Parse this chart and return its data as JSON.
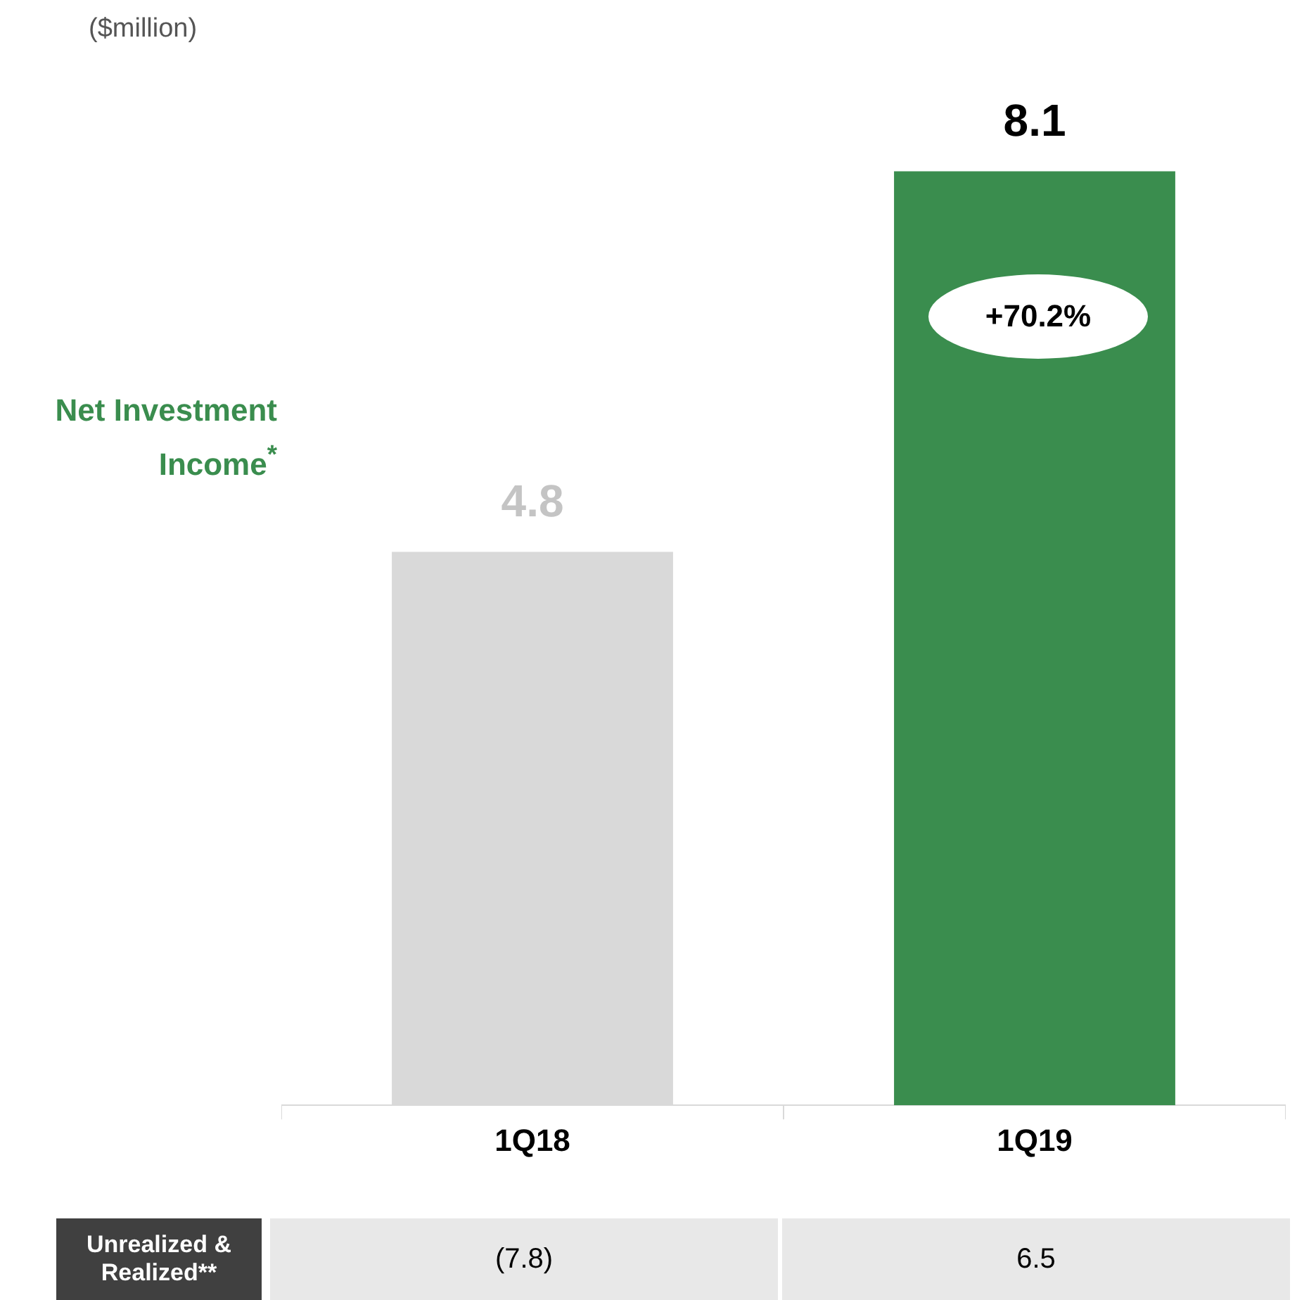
{
  "chart_data": {
    "type": "bar",
    "subtitle": "($million)",
    "ylabel": "Net Investment Income$^{*}$",
    "categories": [
      "1Q18",
      "1Q19"
    ],
    "values": [
      4.8,
      8.1
    ],
    "colors": [
      "#d9d9d9",
      "#3a8d4e"
    ],
    "data_labels": true,
    "annotations": [
      "+70.2%",
      "Unrealized & Realized**",
      "(7.8)",
      "6.5"
    ]
  }
}
